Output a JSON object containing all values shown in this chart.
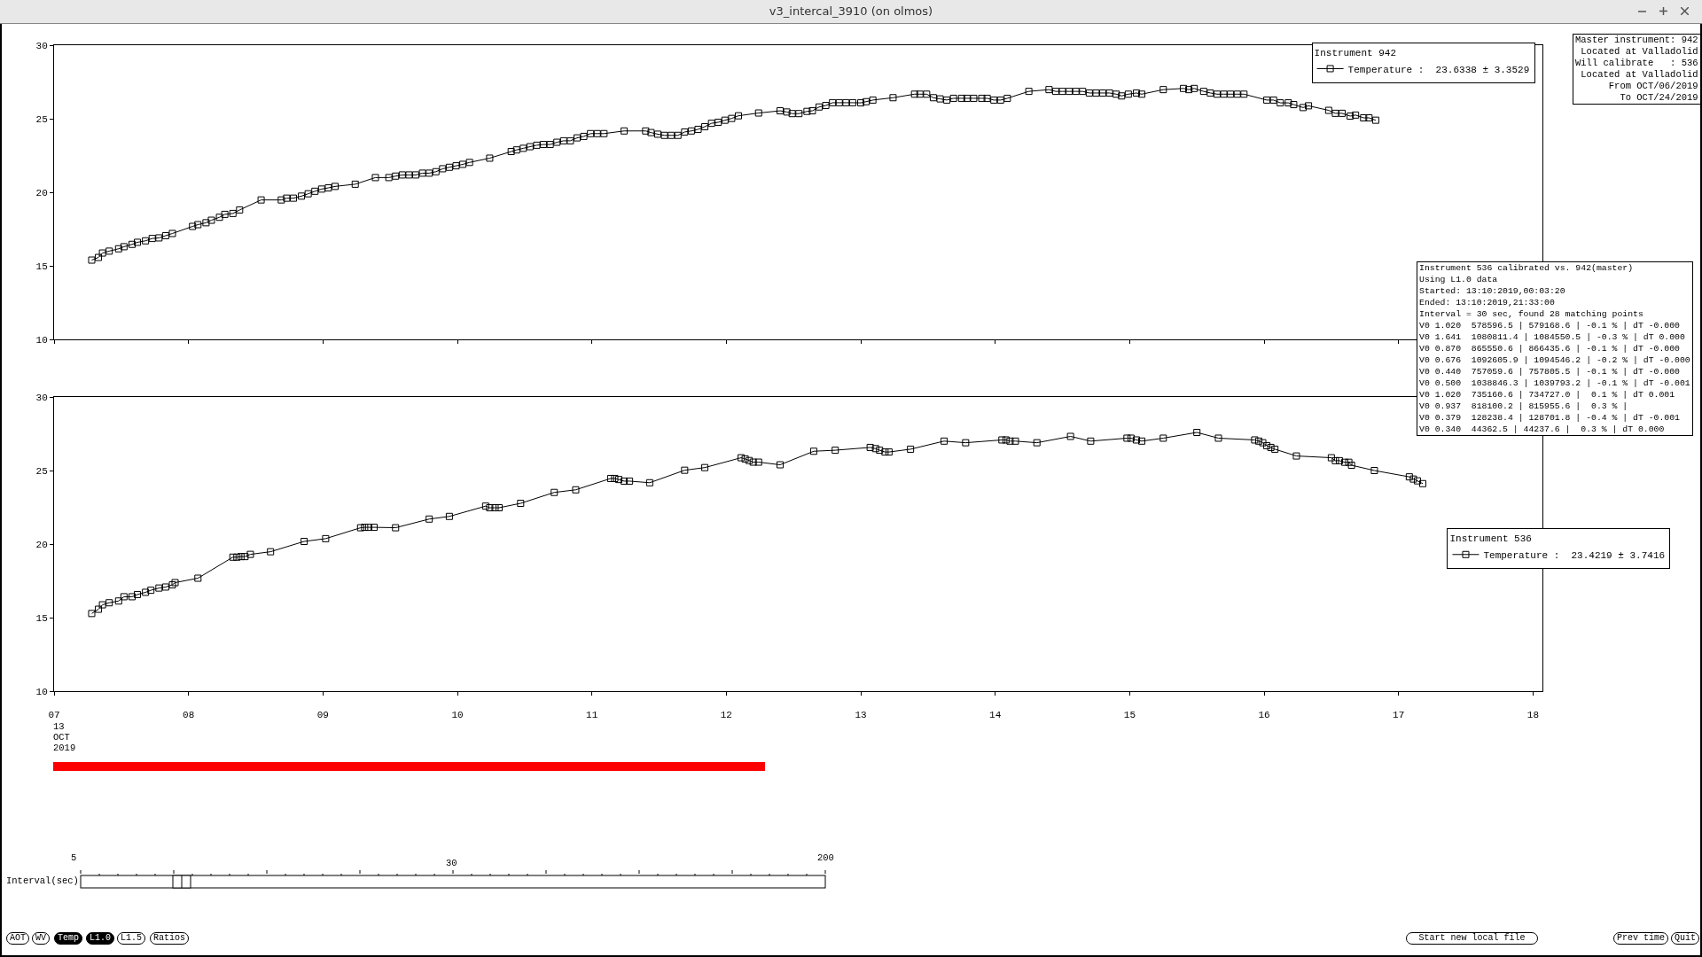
{
  "chart_data": [
    {
      "type": "line",
      "title": "v3_intercal_3910 (on olmos)",
      "legend_title": "Instrument 942",
      "tick_labels": "y",
      "legend": "top right",
      "marker": "square",
      "line_style": "solid",
      "x": [
        7.28,
        7.33,
        7.36,
        7.41,
        7.48,
        7.52,
        7.58,
        7.62,
        7.68,
        7.73,
        7.78,
        7.83,
        7.88,
        8.03,
        8.07,
        8.13,
        8.17,
        8.23,
        8.27,
        8.33,
        8.38,
        8.54,
        8.69,
        8.73,
        8.78,
        8.84,
        8.89,
        8.94,
        8.99,
        9.04,
        9.09,
        9.24,
        9.39,
        9.49,
        9.54,
        9.59,
        9.64,
        9.69,
        9.74,
        9.79,
        9.84,
        9.89,
        9.94,
        9.99,
        10.04,
        10.09,
        10.24,
        10.4,
        10.44,
        10.49,
        10.54,
        10.59,
        10.64,
        10.69,
        10.74,
        10.79,
        10.84,
        10.89,
        10.94,
        10.99,
        11.04,
        11.09,
        11.24,
        11.4,
        11.44,
        11.49,
        11.54,
        11.59,
        11.64,
        11.69,
        11.74,
        11.79,
        11.84,
        11.89,
        11.94,
        11.99,
        12.04,
        12.09,
        12.24,
        12.4,
        12.45,
        12.49,
        12.54,
        12.6,
        12.64,
        12.69,
        12.74,
        12.79,
        12.84,
        12.89,
        12.94,
        13.0,
        13.04,
        13.09,
        13.24,
        13.4,
        13.44,
        13.49,
        13.54,
        13.59,
        13.64,
        13.69,
        13.75,
        13.79,
        13.84,
        13.9,
        13.94,
        13.99,
        14.04,
        14.09,
        14.25,
        14.4,
        14.45,
        14.5,
        14.55,
        14.6,
        14.65,
        14.7,
        14.75,
        14.8,
        14.85,
        14.9,
        14.94,
        14.99,
        15.05,
        15.09,
        15.25,
        15.4,
        15.44,
        15.48,
        15.55,
        15.6,
        15.65,
        15.7,
        15.75,
        15.8,
        15.85,
        16.02,
        16.07,
        16.12,
        16.18,
        16.22,
        16.29,
        16.33,
        16.48,
        16.53,
        16.58,
        16.64,
        16.68,
        16.74,
        16.78,
        16.83
      ],
      "series": [
        {
          "name": "Temperature :  23.6338 ± 3.3529",
          "color": "#000000",
          "values": [
            15.39,
            15.57,
            15.87,
            16.0,
            16.16,
            16.3,
            16.46,
            16.6,
            16.7,
            16.86,
            16.9,
            17.05,
            17.2,
            17.68,
            17.8,
            17.93,
            18.1,
            18.3,
            18.5,
            18.56,
            18.8,
            19.48,
            19.48,
            19.6,
            19.6,
            19.74,
            19.9,
            20.07,
            20.22,
            20.3,
            20.4,
            20.55,
            21.0,
            21.0,
            21.1,
            21.18,
            21.18,
            21.18,
            21.3,
            21.3,
            21.4,
            21.6,
            21.7,
            21.8,
            21.9,
            22.03,
            22.32,
            22.77,
            22.88,
            22.99,
            23.1,
            23.2,
            23.25,
            23.25,
            23.4,
            23.5,
            23.5,
            23.7,
            23.8,
            23.99,
            23.99,
            23.99,
            24.17,
            24.17,
            24.06,
            23.95,
            23.87,
            23.87,
            23.87,
            24.1,
            24.17,
            24.28,
            24.46,
            24.69,
            24.76,
            24.9,
            25.02,
            25.2,
            25.39,
            25.54,
            25.46,
            25.35,
            25.35,
            25.5,
            25.54,
            25.8,
            25.9,
            26.09,
            26.09,
            26.09,
            26.09,
            26.08,
            26.16,
            26.27,
            26.43,
            26.67,
            26.67,
            26.67,
            26.43,
            26.35,
            26.27,
            26.39,
            26.39,
            26.39,
            26.39,
            26.39,
            26.39,
            26.27,
            26.27,
            26.39,
            26.86,
            26.98,
            26.86,
            26.86,
            26.86,
            26.86,
            26.86,
            26.75,
            26.75,
            26.75,
            26.75,
            26.67,
            26.55,
            26.67,
            26.75,
            26.67,
            26.98,
            27.06,
            26.98,
            27.06,
            26.86,
            26.75,
            26.67,
            26.67,
            26.67,
            26.67,
            26.67,
            26.27,
            26.27,
            26.08,
            26.08,
            25.96,
            25.76,
            25.88,
            25.57,
            25.37,
            25.37,
            25.18,
            25.25,
            25.06,
            25.06,
            24.9
          ]
        }
      ],
      "xlim": [
        7,
        18.07
      ],
      "xticks": [
        7,
        8,
        9,
        10,
        11,
        12,
        13,
        14,
        15,
        16,
        17,
        18
      ],
      "ylim": [
        10,
        30
      ],
      "yticks": [
        10,
        15,
        20,
        25,
        30
      ],
      "annotations": [
        "Master instrument: 942\nLocated at Valladolid\nWill calibrate   : 536\nLocated at Valladolid\nFrom OCT/06/2019\nTo OCT/24/2019",
        "Instrument 536 calibrated vs. 942(master)\nUsing L1.0 data\nStarted: 13:10:2019,00:03:20\nEnded: 13:10:2019,21:33:00\nInterval = 30 sec, found 28 matching points\nV0 1.020  578596.5 | 579168.6 | -0.1 % | dT -0.000\nV0 1.641  1080811.4 | 1084550.5 | -0.3 % | dT 0.000\nV0 0.870  865550.6 | 866435.6 | -0.1 % | dT -0.000\nV0 0.676  1092605.9 | 1094546.2 | -0.2 % | dT -0.000\nV0 0.440  757059.6 | 757805.5 | -0.1 % | dT -0.000\nV0 0.500  1038846.3 | 1039793.2 | -0.1 % | dT -0.001\nV0 1.020  735160.6 | 734727.0 |  0.1 % | dT 0.001\nV0 0.937  818100.2 | 815955.6 |  0.3 % |\nV0 0.379  128238.4 | 128701.8 | -0.4 % | dT -0.001\nV0 0.340  44362.5 | 44237.6 |  0.3 % | dT 0.000"
      ]
    },
    {
      "type": "line",
      "legend_title": "Instrument 536",
      "legend": "right",
      "marker": "square",
      "line_style": "solid",
      "x": [
        7.28,
        7.33,
        7.36,
        7.41,
        7.48,
        7.52,
        7.58,
        7.62,
        7.68,
        7.72,
        7.78,
        7.83,
        7.88,
        7.9,
        8.07,
        8.33,
        8.36,
        8.39,
        8.42,
        8.46,
        8.61,
        8.86,
        9.02,
        9.28,
        9.31,
        9.34,
        9.38,
        9.54,
        9.79,
        9.94,
        10.21,
        10.24,
        10.28,
        10.31,
        10.47,
        10.72,
        10.88,
        11.14,
        11.17,
        11.2,
        11.24,
        11.28,
        11.43,
        11.69,
        11.84,
        12.11,
        12.14,
        12.17,
        12.2,
        12.24,
        12.4,
        12.65,
        12.81,
        13.07,
        13.11,
        13.14,
        13.18,
        13.21,
        13.37,
        13.62,
        13.78,
        14.05,
        14.08,
        14.11,
        14.15,
        14.31,
        14.56,
        14.71,
        14.98,
        15.01,
        15.05,
        15.09,
        15.25,
        15.5,
        15.66,
        15.93,
        15.96,
        15.99,
        16.02,
        16.05,
        16.08,
        16.24,
        16.5,
        16.53,
        16.56,
        16.6,
        16.63,
        16.65,
        16.82,
        17.08,
        17.11,
        17.14,
        17.18
      ],
      "series": [
        {
          "name": "Temperature :  23.4219 ± 3.7416",
          "color": "#000000",
          "values": [
            15.28,
            15.57,
            15.87,
            16.01,
            16.13,
            16.42,
            16.42,
            16.57,
            16.72,
            16.86,
            17.01,
            17.08,
            17.23,
            17.38,
            17.68,
            19.11,
            19.11,
            19.15,
            19.15,
            19.3,
            19.48,
            20.18,
            20.37,
            21.11,
            21.14,
            21.14,
            21.14,
            21.11,
            21.7,
            21.88,
            22.58,
            22.47,
            22.47,
            22.47,
            22.77,
            23.51,
            23.69,
            24.46,
            24.46,
            24.39,
            24.28,
            24.28,
            24.17,
            25.02,
            25.2,
            25.87,
            25.79,
            25.68,
            25.57,
            25.57,
            25.39,
            26.31,
            26.38,
            26.57,
            26.49,
            26.38,
            26.26,
            26.26,
            26.45,
            27.0,
            26.89,
            27.08,
            27.08,
            27.0,
            27.0,
            26.89,
            27.32,
            27.0,
            27.2,
            27.2,
            27.08,
            27.0,
            27.2,
            27.59,
            27.2,
            27.08,
            27.0,
            26.89,
            26.69,
            26.57,
            26.45,
            25.99,
            25.87,
            25.67,
            25.67,
            25.56,
            25.56,
            25.36,
            25.0,
            24.57,
            24.42,
            24.3,
            24.11
          ]
        }
      ],
      "xlim": [
        7,
        18.07
      ],
      "xticks": [
        {
          "value": 7,
          "label": "07"
        },
        {
          "value": 8,
          "label": "08"
        },
        {
          "value": 9,
          "label": "09"
        },
        {
          "value": 10,
          "label": "10"
        },
        {
          "value": 11,
          "label": "11"
        },
        {
          "value": 12,
          "label": "12"
        },
        {
          "value": 13,
          "label": "13"
        },
        {
          "value": 14,
          "label": "14"
        },
        {
          "value": 15,
          "label": "15"
        },
        {
          "value": 16,
          "label": "16"
        },
        {
          "value": 17,
          "label": "17"
        },
        {
          "value": 18,
          "label": "18"
        }
      ],
      "ylim": [
        10,
        30
      ],
      "yticks": [
        10,
        15,
        20,
        25,
        30
      ],
      "annotations": [
        "13\nOCT\n2019",
        "Interval(sec)",
        "5",
        "30",
        "200",
        "AOT",
        "WV",
        "Temp",
        "L1.0",
        "L1.5",
        "Ratios",
        "Start new local file",
        "Prev time",
        "Quit"
      ]
    }
  ]
}
